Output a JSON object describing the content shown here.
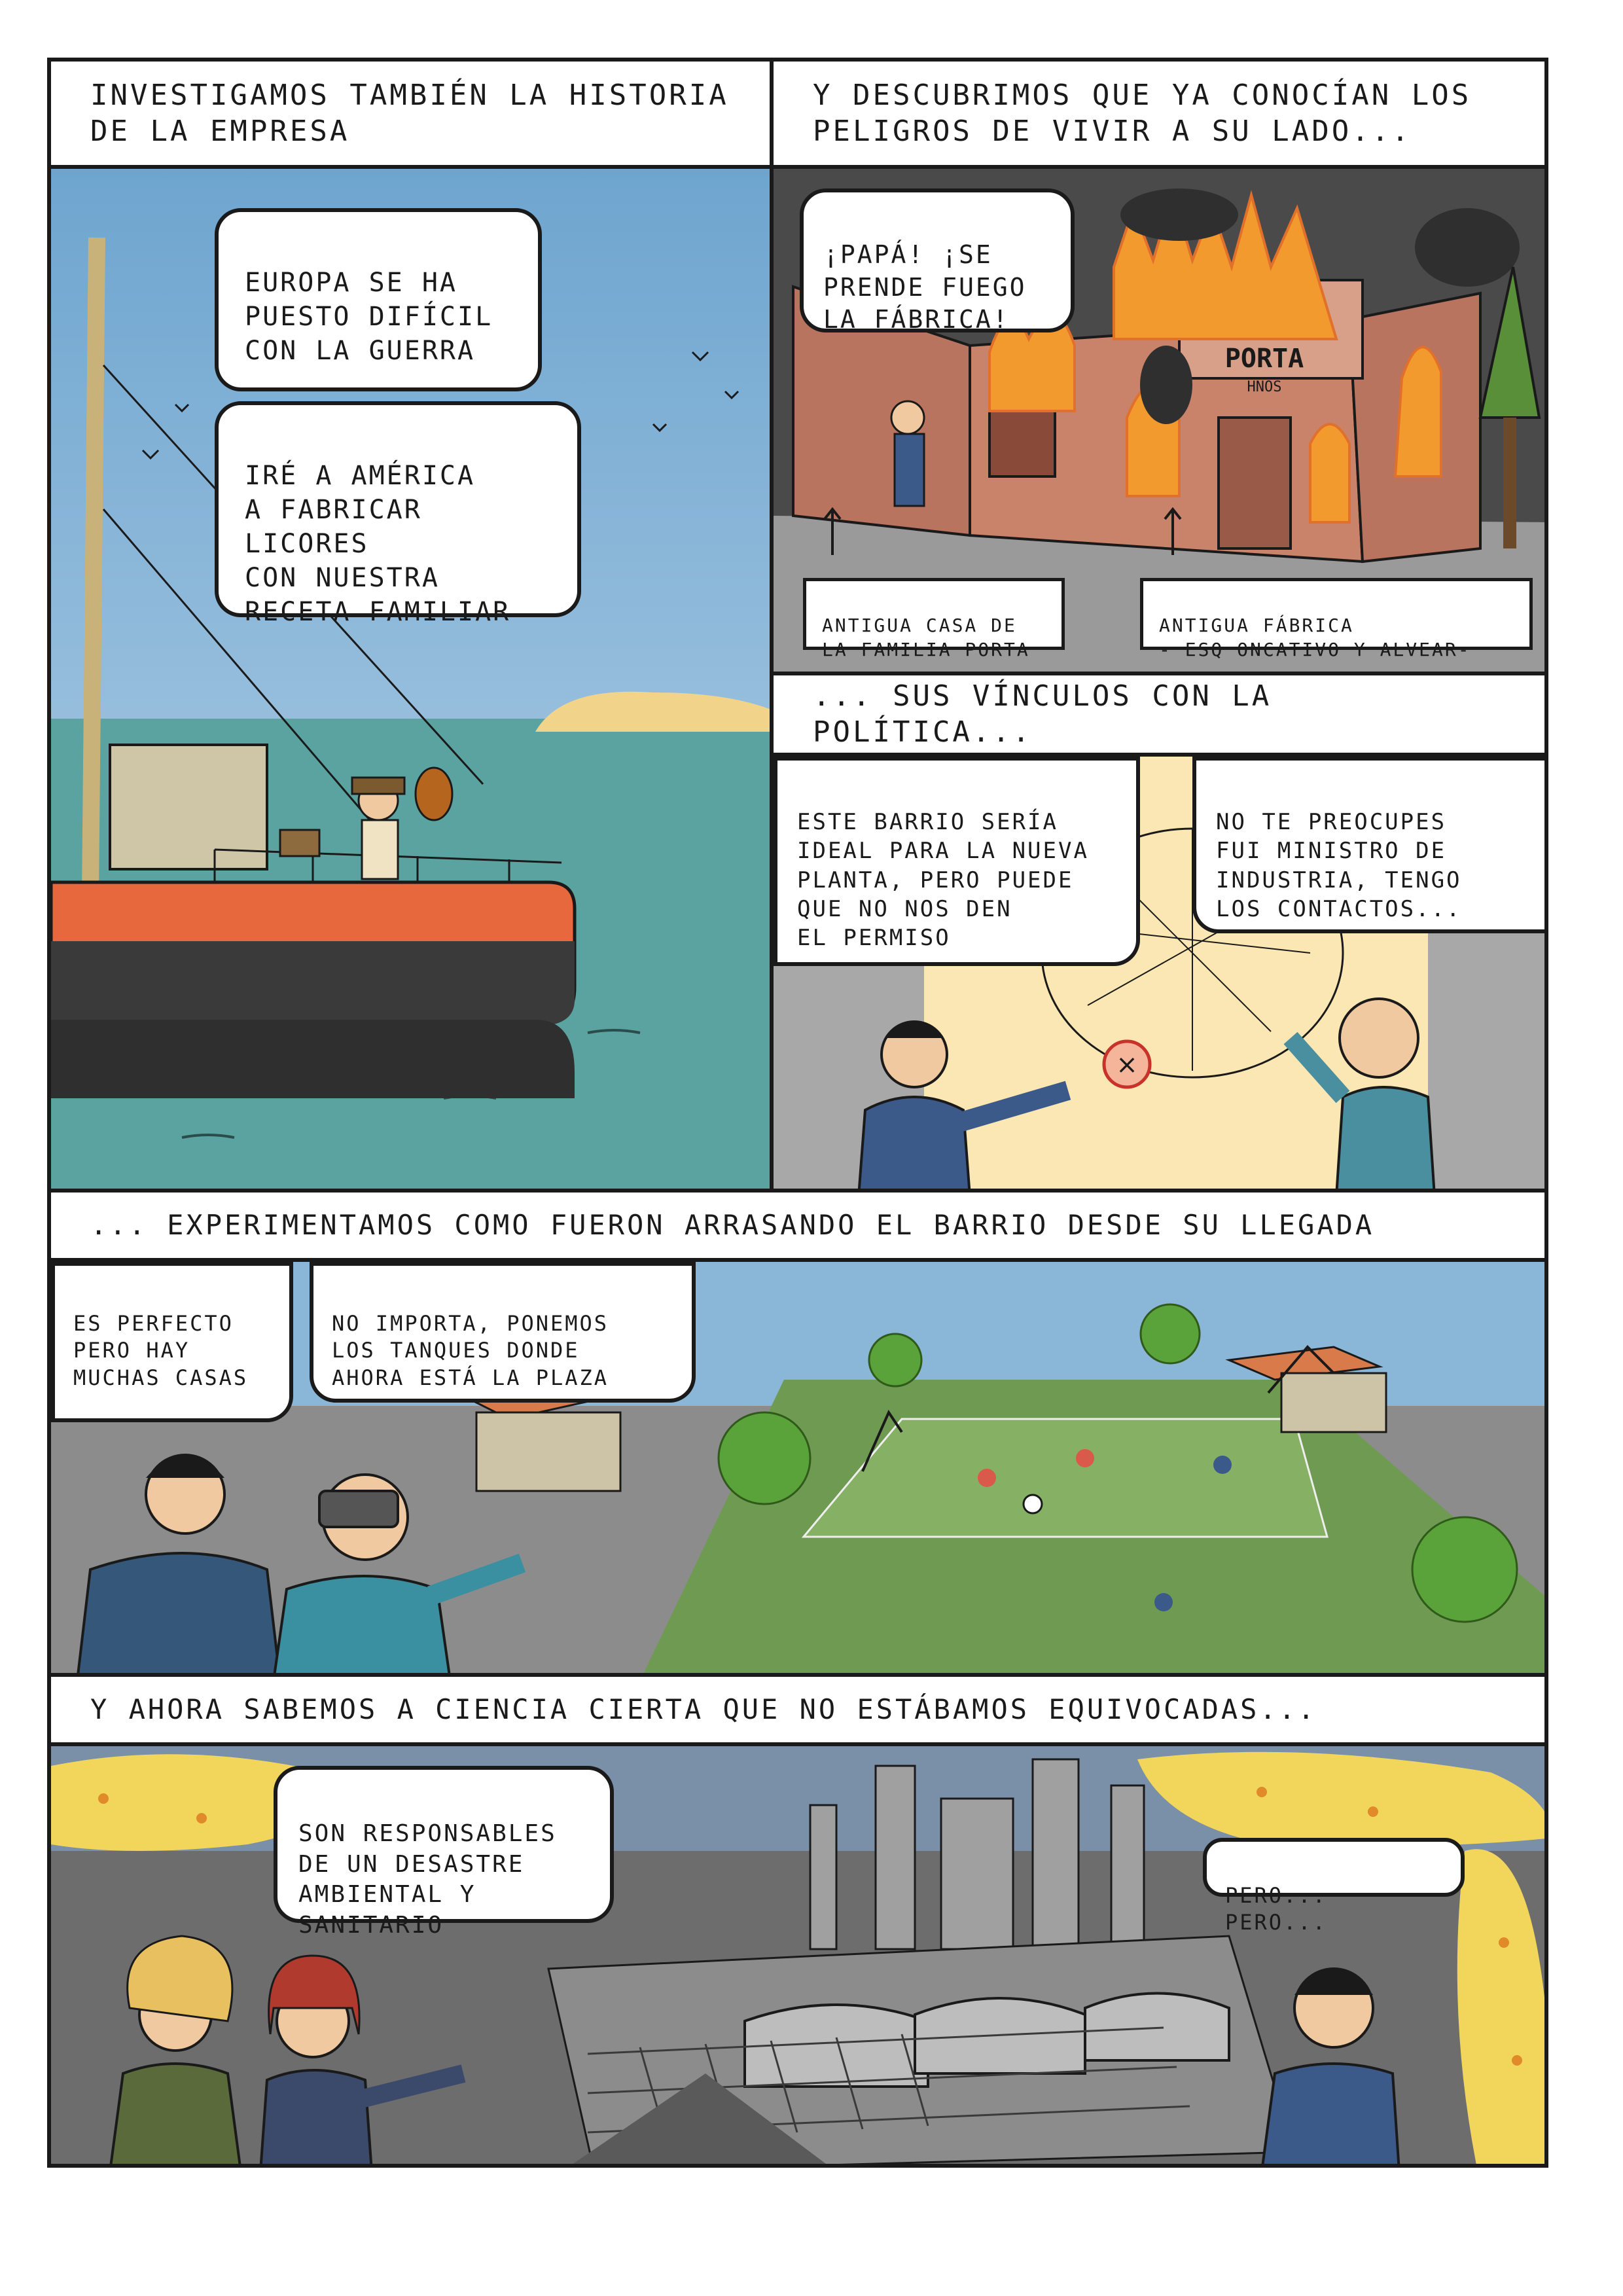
{
  "captions": {
    "c1": "Investigamos también la historia de la empresa",
    "c2": "Y descubrimos que ya conocían los peligros de vivir a su lado...",
    "c3": "... Sus vínculos con la política...",
    "c4": "... Experimentamos como fueron arrasando el barrio desde su llegada",
    "c5": "Y ahora sabemos a ciencia cierta que no estábamos equivocadas..."
  },
  "panel1": {
    "bubble1": "Europa se ha\npuesto difícil\ncon la guerra",
    "bubble2": "Iré a América\na fabricar licores\ncon nuestra\nreceta familiar"
  },
  "panel2": {
    "bubble": "¡Papá! ¡Se\nprende fuego\nla fábrica!",
    "sign_main": "PORTA",
    "sign_sub": "HNOS",
    "label_house": "Antigua casa de\nla familia Porta",
    "label_factory": "Antigua fábrica\n- esq Oncativo y Alvear-"
  },
  "panel3": {
    "bubble_left": "Este barrio sería\nideal para la nueva\nplanta, pero puede\nque no nos den\nel permiso",
    "bubble_right": "No te preocupes\nfui ministro de\nindustria, tengo\nlos contactos..."
  },
  "panel4": {
    "bubble_left": "Es perfecto\npero hay\nmuchas casas",
    "bubble_right": "No importa, ponemos\nlos tanques donde\nahora está la plaza"
  },
  "panel5": {
    "bubble_left": "Son responsables\nde un desastre\nambiental y\nsanitario",
    "bubble_right": "Pero... pero..."
  },
  "colors": {
    "sea": "#5aa3a0",
    "sky_blue": "#8ab6d8",
    "fire": "#f29a2e",
    "brick": "#c9836a",
    "grass": "#6f9a52",
    "smog_yellow": "#f2d65c",
    "asphalt": "#8c8c8c"
  }
}
